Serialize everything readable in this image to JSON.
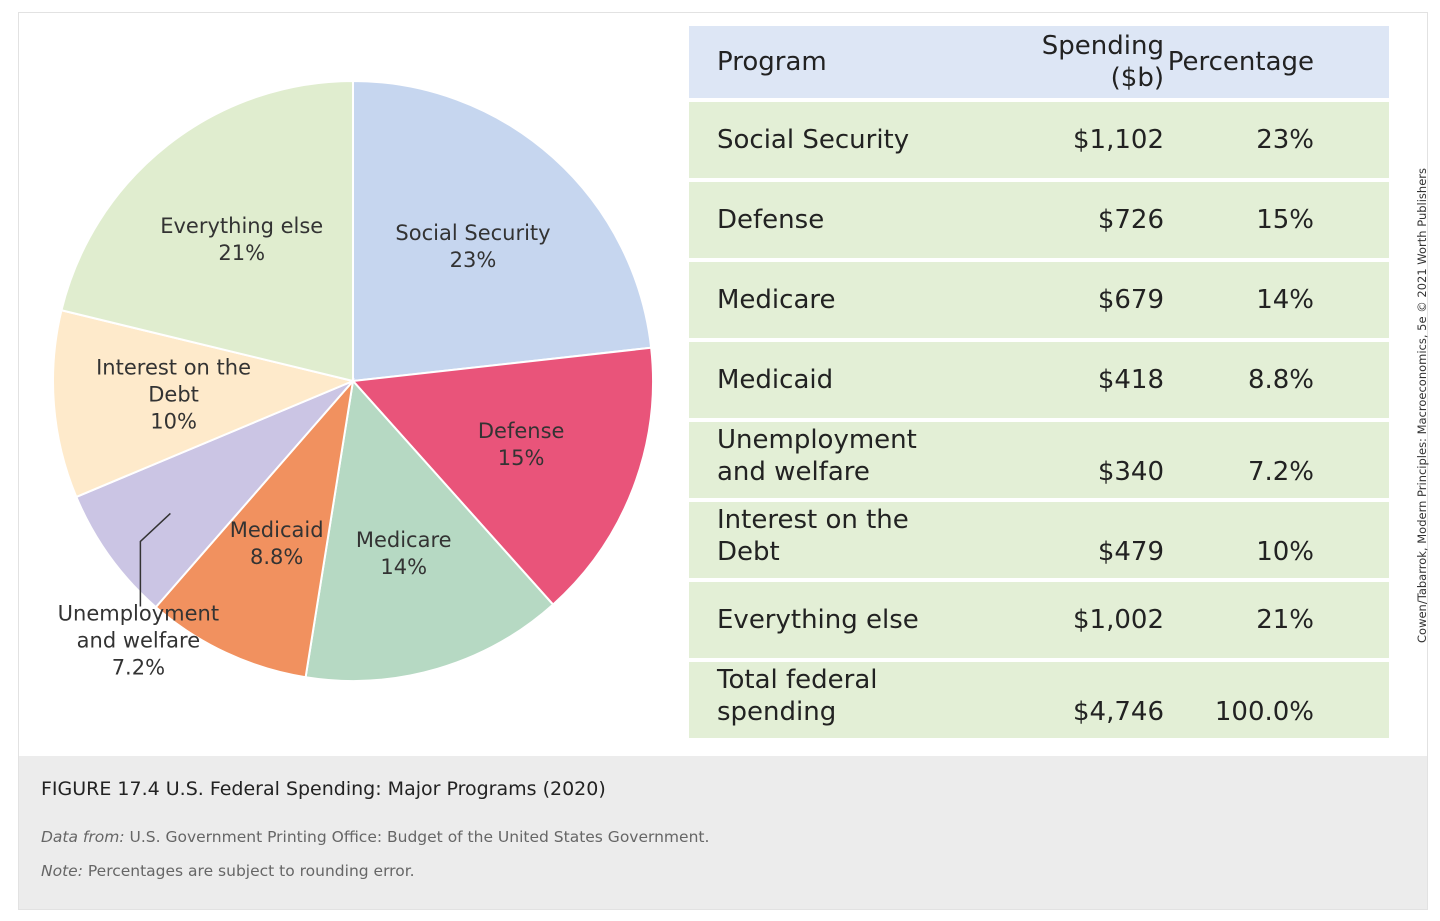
{
  "chart_data": {
    "type": "pie",
    "categories": [
      "Social Security",
      "Defense",
      "Medicare",
      "Medicaid",
      "Unemployment and welfare",
      "Interest on the Debt",
      "Everything else"
    ],
    "values": [
      23,
      15,
      14,
      8.8,
      7.2,
      10,
      21
    ],
    "value_labels": [
      "23%",
      "15%",
      "14%",
      "8.8%",
      "7.2%",
      "10%",
      "21%"
    ],
    "colors": [
      "#c6d6ef",
      "#e9547a",
      "#b6d9c3",
      "#f1915f",
      "#cbc5e4",
      "#feeacb",
      "#e0edcf"
    ]
  },
  "table": {
    "header": [
      "Program",
      "Spending ($b)",
      "Percentage"
    ],
    "rows": [
      [
        "Social Security",
        "$1,102",
        "23%"
      ],
      [
        "Defense",
        "$726",
        "15%"
      ],
      [
        "Medicare",
        "$679",
        "14%"
      ],
      [
        "Medicaid",
        "$418",
        "8.8%"
      ],
      [
        "Unemployment and welfare",
        "$340",
        "7.2%"
      ],
      [
        "Interest on the Debt",
        "$479",
        "10%"
      ],
      [
        "Everything else",
        "$1,002",
        "21%"
      ],
      [
        "Total federal spending",
        "$4,746",
        "100.0%"
      ]
    ]
  },
  "caption": {
    "title": "FIGURE 17.4 U.S. Federal Spending: Major Programs (2020)",
    "source_label": "Data from:",
    "source": "U.S. Government Printing Office: Budget of the United States Government.",
    "note_label": "Note:",
    "note": "Percentages are subject to rounding error."
  },
  "credit": "Cowen/Tabarrok, Modern Principles: Macroeconomics, 5e © 2021 Worth Publishers"
}
